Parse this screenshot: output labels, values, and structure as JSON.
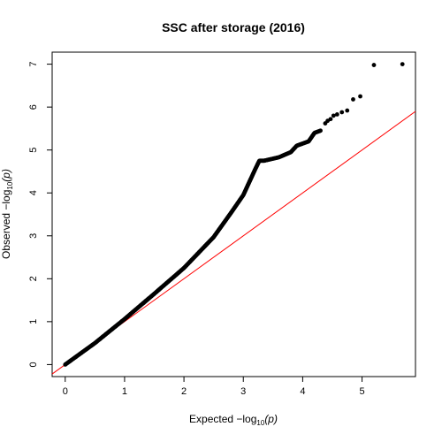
{
  "chart_data": {
    "type": "scatter",
    "title": "SSC after storage (2016)",
    "xlabel": {
      "prefix": "Expected  −log",
      "sub": "10",
      "suffix": "(p)"
    },
    "ylabel": {
      "prefix": "Observed  −log",
      "sub": "10",
      "suffix": "(p)"
    },
    "xlim": [
      -0.22,
      5.9
    ],
    "ylim": [
      -0.28,
      7.28
    ],
    "x_ticks": [
      0,
      1,
      2,
      3,
      4,
      5
    ],
    "y_ticks": [
      0,
      1,
      2,
      3,
      4,
      5,
      6,
      7
    ],
    "grid": false,
    "legend": "none",
    "reference_line": {
      "slope": 1,
      "intercept": 0,
      "color": "#ff0000"
    },
    "point_color": "#000000",
    "curve_points": [
      [
        0,
        0
      ],
      [
        0.5,
        0.5
      ],
      [
        1.0,
        1.06
      ],
      [
        1.5,
        1.65
      ],
      [
        2.0,
        2.25
      ],
      [
        2.5,
        2.97
      ],
      [
        2.8,
        3.55
      ],
      [
        3.0,
        3.95
      ],
      [
        3.1,
        4.25
      ],
      [
        3.2,
        4.55
      ],
      [
        3.27,
        4.75
      ],
      [
        3.35,
        4.75
      ],
      [
        3.6,
        4.83
      ],
      [
        3.8,
        4.95
      ],
      [
        3.9,
        5.1
      ],
      [
        4.1,
        5.2
      ],
      [
        4.2,
        5.4
      ],
      [
        4.3,
        5.45
      ]
    ],
    "tail_points": [
      [
        4.38,
        5.62
      ],
      [
        4.42,
        5.68
      ],
      [
        4.47,
        5.72
      ],
      [
        4.52,
        5.8
      ],
      [
        4.58,
        5.83
      ],
      [
        4.66,
        5.88
      ],
      [
        4.75,
        5.92
      ],
      [
        4.85,
        6.18
      ],
      [
        4.97,
        6.25
      ],
      [
        5.2,
        6.98
      ],
      [
        5.68,
        7.0
      ]
    ]
  }
}
